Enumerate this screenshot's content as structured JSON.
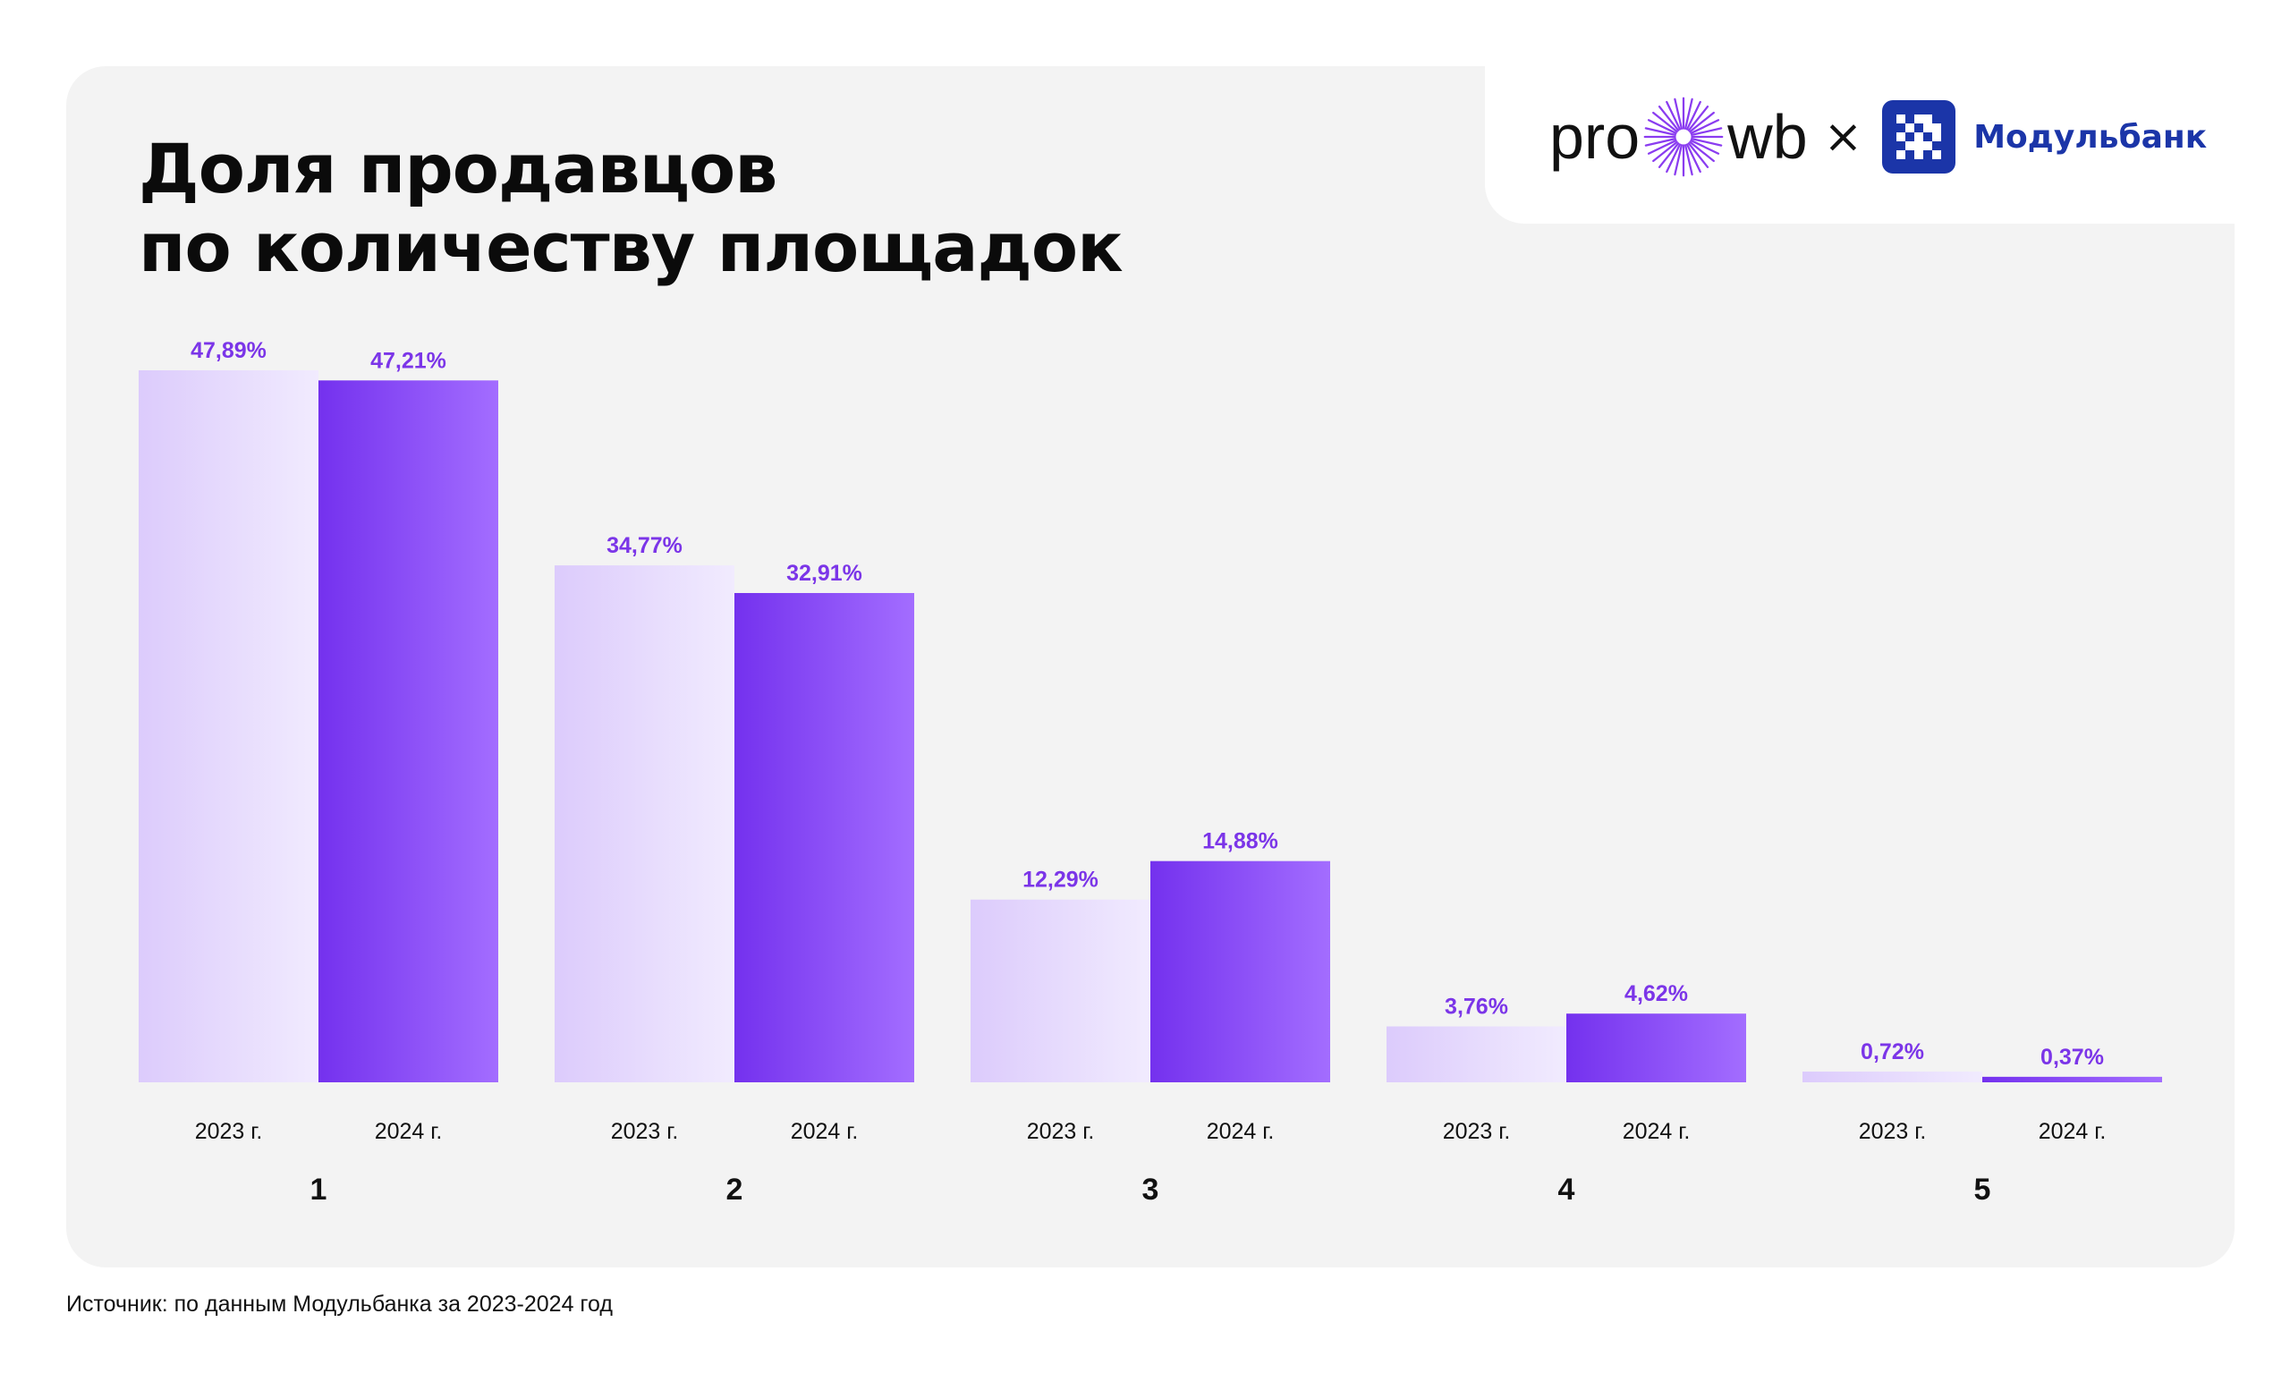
{
  "colors": {
    "background": "#ffffff",
    "card": "#f3f3f3",
    "title": "#0b0b0b",
    "value_label": "#7b35e8",
    "series_2023": [
      "#dccbfc",
      "#f1ebfe"
    ],
    "series_2024": [
      "#7431ee",
      "#a36dff"
    ],
    "brand_modulbank": "#1b35a8",
    "brand_prowb_burst": "#8a3cf0"
  },
  "title": {
    "line1": "Доля продавцов",
    "line2": "по количеству площадок"
  },
  "logos": {
    "prowb_left": "pro",
    "prowb_right": "wb",
    "prowb_icon": "burst-icon",
    "separator": "×",
    "modulbank_icon": "modulbank-pixel-icon",
    "modulbank_name": "Модульбанк"
  },
  "chart_data": {
    "type": "bar",
    "title": "Доля продавцов по количеству площадок",
    "categories": [
      "1",
      "2",
      "3",
      "4",
      "5"
    ],
    "series": [
      {
        "name": "2023 г.",
        "values": [
          47.89,
          34.77,
          12.29,
          3.76,
          0.72
        ],
        "labels": [
          "47,89%",
          "34,77%",
          "12,29%",
          "3,76%",
          "0,72%"
        ]
      },
      {
        "name": "2024 г.",
        "values": [
          47.21,
          32.91,
          14.88,
          4.62,
          0.37
        ],
        "labels": [
          "47,21%",
          "32,91%",
          "14,88%",
          "4,62%",
          "0,37%"
        ]
      }
    ],
    "xlabel": "",
    "ylabel": "",
    "ylim": [
      0,
      47.89
    ],
    "grid": false,
    "legend": "none"
  },
  "footnote": "Источник: по данным Модульбанка за 2023-2024 год"
}
